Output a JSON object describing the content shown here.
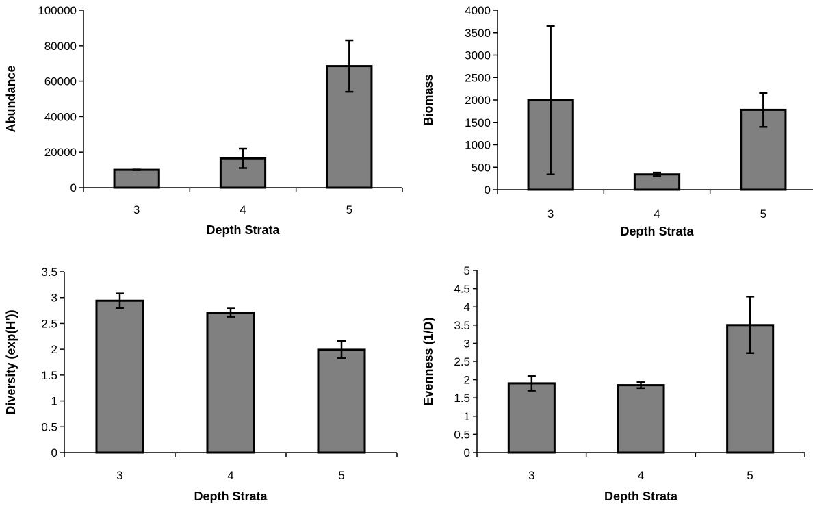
{
  "chart_data": [
    {
      "type": "bar",
      "categories": [
        "3",
        "4",
        "5"
      ],
      "values": [
        10000,
        16500,
        68500
      ],
      "error_low": [
        9800,
        11000,
        54000
      ],
      "error_high": [
        10200,
        22000,
        83000
      ],
      "xlabel": "Depth Strata",
      "ylabel": "Abundance",
      "ylim": [
        0,
        100000
      ],
      "yticks": [
        0,
        20000,
        40000,
        60000,
        80000,
        100000
      ],
      "ytick_labels": [
        "0",
        "20000",
        "40000",
        "60000",
        "80000",
        "100000"
      ],
      "grid": false,
      "bar_color": "#808080"
    },
    {
      "type": "bar",
      "categories": [
        "3",
        "4",
        "5"
      ],
      "values": [
        2000,
        340,
        1780
      ],
      "error_low": [
        340,
        300,
        1400
      ],
      "error_high": [
        3650,
        380,
        2150
      ],
      "xlabel": "Depth Strata",
      "ylabel": "Biomass",
      "ylim": [
        0,
        4000
      ],
      "yticks": [
        0,
        500,
        1000,
        1500,
        2000,
        2500,
        3000,
        3500,
        4000
      ],
      "ytick_labels": [
        "0",
        "500",
        "1000",
        "1500",
        "2000",
        "2500",
        "3000",
        "3500",
        "4000"
      ],
      "grid": false,
      "bar_color": "#808080"
    },
    {
      "type": "bar",
      "categories": [
        "3",
        "4",
        "5"
      ],
      "values": [
        2.94,
        2.71,
        1.99
      ],
      "error_low": [
        2.8,
        2.63,
        1.83
      ],
      "error_high": [
        3.08,
        2.79,
        2.16
      ],
      "xlabel": "Depth Strata",
      "ylabel": "Diversity (exp(H'))",
      "ylim": [
        0,
        3.5
      ],
      "yticks": [
        0,
        0.5,
        1,
        1.5,
        2,
        2.5,
        3,
        3.5
      ],
      "ytick_labels": [
        "0",
        "0.5",
        "1",
        "1.5",
        "2",
        "2.5",
        "3",
        "3.5"
      ],
      "grid": false,
      "bar_color": "#808080"
    },
    {
      "type": "bar",
      "categories": [
        "3",
        "4",
        "5"
      ],
      "values": [
        1.9,
        1.85,
        3.5
      ],
      "error_low": [
        1.7,
        1.77,
        2.73
      ],
      "error_high": [
        2.1,
        1.93,
        4.28
      ],
      "xlabel": "Depth Strata",
      "ylabel": "Evenness (1/D)",
      "ylim": [
        0,
        5
      ],
      "yticks": [
        0,
        0.5,
        1,
        1.5,
        2,
        2.5,
        3,
        3.5,
        4,
        4.5,
        5
      ],
      "ytick_labels": [
        "0",
        "0.5",
        "1",
        "1.5",
        "2",
        "2.5",
        "3",
        "3.5",
        "4",
        "4.5",
        "5"
      ],
      "grid": false,
      "bar_color": "#808080"
    }
  ]
}
